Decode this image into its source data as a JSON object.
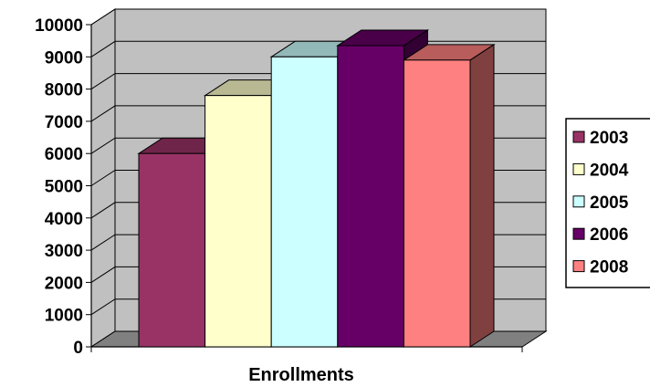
{
  "chart_data": {
    "type": "bar",
    "categories": [
      "Enrollments"
    ],
    "xlabel": "Enrollments",
    "ylabel": "",
    "title": "",
    "ylim": [
      0,
      10000
    ],
    "yticks": [
      "0",
      "1000",
      "2000",
      "3000",
      "4000",
      "5000",
      "6000",
      "7000",
      "8000",
      "9000",
      "10000"
    ],
    "grid": true,
    "legend_position": "right",
    "series": [
      {
        "name": "2003",
        "values": [
          6000
        ],
        "color": "#993366"
      },
      {
        "name": "2004",
        "values": [
          7800
        ],
        "color": "#FFFFCC"
      },
      {
        "name": "2005",
        "values": [
          9000
        ],
        "color": "#CCFFFF"
      },
      {
        "name": "2006",
        "values": [
          9350
        ],
        "color": "#660066"
      },
      {
        "name": "2008",
        "values": [
          8900
        ],
        "color": "#FF8080"
      }
    ],
    "wall_color": "#C0C0C0",
    "floor_color": "#808080"
  }
}
